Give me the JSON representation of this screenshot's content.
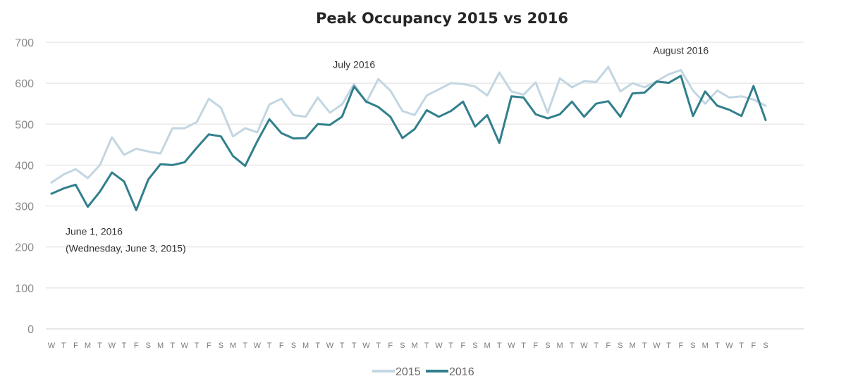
{
  "chart_data": {
    "type": "line",
    "title": "Peak Occupancy 2015 vs 2016",
    "xlabel": "",
    "ylabel": "",
    "ylim": [
      0,
      700
    ],
    "yticks": [
      0,
      100,
      200,
      300,
      400,
      500,
      600,
      700
    ],
    "grid": true,
    "legend_position": "bottom",
    "categories": [
      "W",
      "T",
      "F",
      "M",
      "T",
      "W",
      "T",
      "F",
      "S",
      "M",
      "T",
      "W",
      "T",
      "F",
      "S",
      "M",
      "T",
      "W",
      "T",
      "F",
      "S",
      "M",
      "T",
      "W",
      "T",
      "T",
      "W",
      "T",
      "F",
      "S",
      "M",
      "T",
      "W",
      "T",
      "F",
      "S",
      "M",
      "T",
      "W",
      "T",
      "F",
      "S",
      "M",
      "T",
      "W",
      "T",
      "F",
      "S",
      "M",
      "T",
      "W",
      "T",
      "F",
      "S",
      "M",
      "T",
      "W",
      "T",
      "F",
      "S"
    ],
    "series": [
      {
        "name": "2015",
        "color": "#c2d6e2",
        "values": [
          357,
          377,
          390,
          368,
          400,
          468,
          425,
          440,
          433,
          428,
          490,
          490,
          505,
          562,
          540,
          470,
          490,
          480,
          548,
          562,
          522,
          518,
          565,
          528,
          548,
          598,
          553,
          610,
          582,
          532,
          522,
          570,
          585,
          600,
          598,
          592,
          570,
          626,
          580,
          572,
          602,
          528,
          612,
          590,
          605,
          603,
          640,
          580,
          600,
          590,
          605,
          622,
          632,
          582,
          550,
          582,
          565,
          568,
          560,
          545
        ],
        "stroke_width": 3
      },
      {
        "name": "2016",
        "color": "#317f8c",
        "values": [
          330,
          343,
          352,
          298,
          335,
          382,
          360,
          290,
          365,
          402,
          400,
          407,
          442,
          475,
          470,
          422,
          398,
          458,
          512,
          478,
          465,
          466,
          500,
          498,
          518,
          592,
          555,
          542,
          518,
          466,
          488,
          534,
          518,
          532,
          555,
          494,
          522,
          454,
          568,
          565,
          524,
          514,
          524,
          555,
          518,
          550,
          556,
          518,
          575,
          577,
          604,
          601,
          618,
          520,
          580,
          545,
          535,
          520,
          593,
          510
        ],
        "stroke_width": 3
      }
    ],
    "annotations": [
      {
        "lines": [
          "June 1, 2016",
          "(Wednesday, June 3, 2015)"
        ],
        "category_index": 0,
        "y": 230,
        "anchor": "start"
      },
      {
        "lines": [
          "July 2016"
        ],
        "category_index": 25,
        "y": 637,
        "anchor": "middle"
      },
      {
        "lines": [
          "August 2016"
        ],
        "category_index": 52,
        "y": 672,
        "anchor": "middle"
      }
    ]
  }
}
